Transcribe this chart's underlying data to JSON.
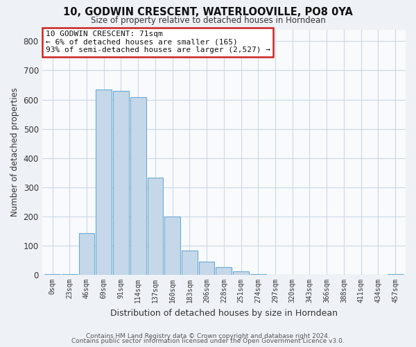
{
  "title": "10, GODWIN CRESCENT, WATERLOOVILLE, PO8 0YA",
  "subtitle": "Size of property relative to detached houses in Horndean",
  "xlabel": "Distribution of detached houses by size in Horndean",
  "ylabel": "Number of detached properties",
  "bar_labels": [
    "0sqm",
    "23sqm",
    "46sqm",
    "69sqm",
    "91sqm",
    "114sqm",
    "137sqm",
    "160sqm",
    "183sqm",
    "206sqm",
    "228sqm",
    "251sqm",
    "274sqm",
    "297sqm",
    "320sqm",
    "343sqm",
    "366sqm",
    "388sqm",
    "411sqm",
    "434sqm",
    "457sqm"
  ],
  "bar_values": [
    3,
    3,
    143,
    635,
    630,
    608,
    332,
    200,
    83,
    46,
    27,
    12,
    3,
    0,
    0,
    0,
    0,
    0,
    0,
    0,
    3
  ],
  "bar_color": "#c5d8ea",
  "bar_edge_color": "#6aaad4",
  "annotation_line1": "10 GODWIN CRESCENT: 71sqm",
  "annotation_line2": "← 6% of detached houses are smaller (165)",
  "annotation_line3": "93% of semi-detached houses are larger (2,527) →",
  "annotation_box_edgecolor": "#cc2222",
  "annotation_box_facecolor": "#ffffff",
  "ylim": [
    0,
    840
  ],
  "yticks": [
    0,
    100,
    200,
    300,
    400,
    500,
    600,
    700,
    800
  ],
  "footer_line1": "Contains HM Land Registry data © Crown copyright and database right 2024.",
  "footer_line2": "Contains public sector information licensed under the Open Government Licence v3.0.",
  "bg_color": "#eef2f7",
  "plot_bg_color": "#f8fafc",
  "grid_color": "#cdd8e3"
}
